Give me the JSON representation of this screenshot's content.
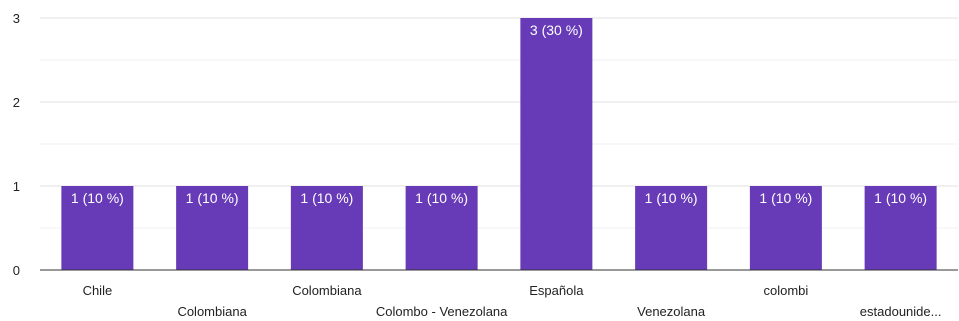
{
  "chart_data": {
    "type": "bar",
    "categories": [
      "Chile",
      "Colombiana",
      "Colombiana",
      "Colombo - Venezolana",
      "Española",
      "Venezolana",
      "colombi",
      "estadounide..."
    ],
    "values": [
      1,
      1,
      1,
      1,
      3,
      1,
      1,
      1
    ],
    "data_labels": [
      "1 (10 %)",
      "1 (10 %)",
      "1 (10 %)",
      "1 (10 %)",
      "3 (30 %)",
      "1 (10 %)",
      "1 (10 %)",
      "1 (10 %)"
    ],
    "yticks": [
      0,
      1,
      2,
      3
    ],
    "ylim": [
      0,
      3
    ],
    "grid": true,
    "bar_color": "#673ab7"
  }
}
